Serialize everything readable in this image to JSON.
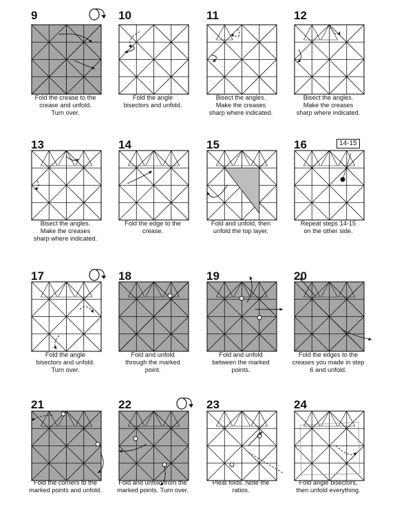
{
  "colors": {
    "line": "#111111",
    "paper_back": "#a6a6a6",
    "paper_front": "#ffffff",
    "layer": "#bdbdbd"
  },
  "steps": [
    {
      "num": "9",
      "caption": "Fold the crease to the\ncrease and unfold.\nTurn over.",
      "shade": true,
      "icon": "turn-over-icon"
    },
    {
      "num": "10",
      "caption": "Fold the angle\nbisectors and unfold.",
      "shade": false
    },
    {
      "num": "11",
      "caption": "Bisect the angles.\nMake the creases\nsharp where indicated.",
      "shade": false
    },
    {
      "num": "12",
      "caption": "Bisect the angles.\nMake the creases\nsharp where indicated.",
      "shade": false
    },
    {
      "num": "13",
      "caption": "Bisect the angles.\nMake the creases\nsharp where indicated.",
      "shade": false
    },
    {
      "num": "14",
      "caption": "Fold the edge to the\ncrease.",
      "shade": false
    },
    {
      "num": "15",
      "caption": "Fold and unfold, then\nunfold the top layer.",
      "shade": false
    },
    {
      "num": "16",
      "caption": "Repeat steps 14-15\non the other side.",
      "shade": false,
      "ref": "14-15"
    },
    {
      "num": "17",
      "caption": "Fold the angle\nbisectors and unfold.\nTurn over.",
      "shade": false,
      "icon": "turn-over-icon"
    },
    {
      "num": "18",
      "caption": "Fold and unfold\nthrough the marked\npoint.",
      "shade": true
    },
    {
      "num": "19",
      "caption": "Fold and unfold\nbetween the marked\npoints.",
      "shade": true
    },
    {
      "num": "20",
      "caption": "Fold the edges to the\ncreases you made in step\n6 and unfold.",
      "shade": true
    },
    {
      "num": "21",
      "caption": "Fold the corners to the\nmarked points and unfold.",
      "shade": true
    },
    {
      "num": "22",
      "caption": "Fold and unfold from the\nmarked points. Turn over.",
      "shade": true,
      "icon": "turn-over-icon"
    },
    {
      "num": "23",
      "caption": "Pleat folds. Note the\nratios.",
      "shade": false
    },
    {
      "num": "24",
      "caption": "Fold angle bisectors,\nthen unfold everything.",
      "shade": false
    }
  ]
}
